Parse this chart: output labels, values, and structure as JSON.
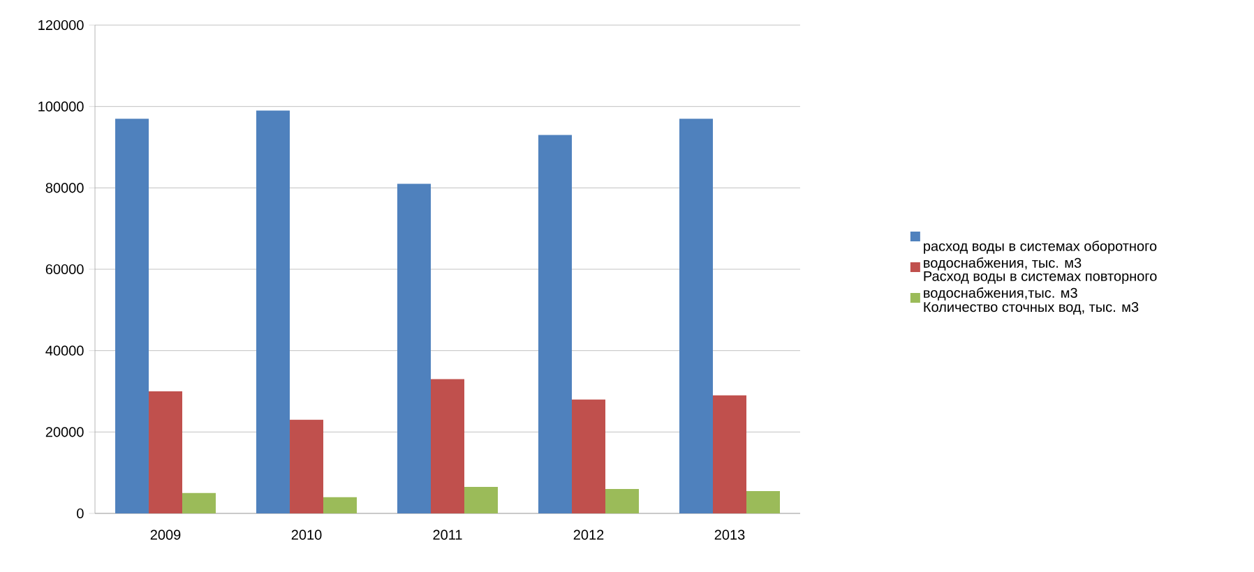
{
  "chart_data": {
    "type": "bar",
    "categories": [
      "2009",
      "2010",
      "2011",
      "2012",
      "2013"
    ],
    "series": [
      {
        "name": "расход воды в системах оборотного водоснабжения, тыс. м3",
        "color": "#4f81bd",
        "values": [
          97000,
          99000,
          81000,
          93000,
          97000
        ]
      },
      {
        "name": "Расход воды в системах повторного водоснабжения,тыс. м3",
        "color": "#c0504d",
        "values": [
          30000,
          23000,
          33000,
          28000,
          29000
        ]
      },
      {
        "name": "Количество сточных вод, тыс. м3",
        "color": "#9bbb59",
        "values": [
          5000,
          4000,
          6500,
          6000,
          5500
        ]
      }
    ],
    "ylim": [
      0,
      120000
    ],
    "yticks": [
      0,
      20000,
      40000,
      60000,
      80000,
      100000,
      120000
    ],
    "grid": "y",
    "legend": "right"
  }
}
